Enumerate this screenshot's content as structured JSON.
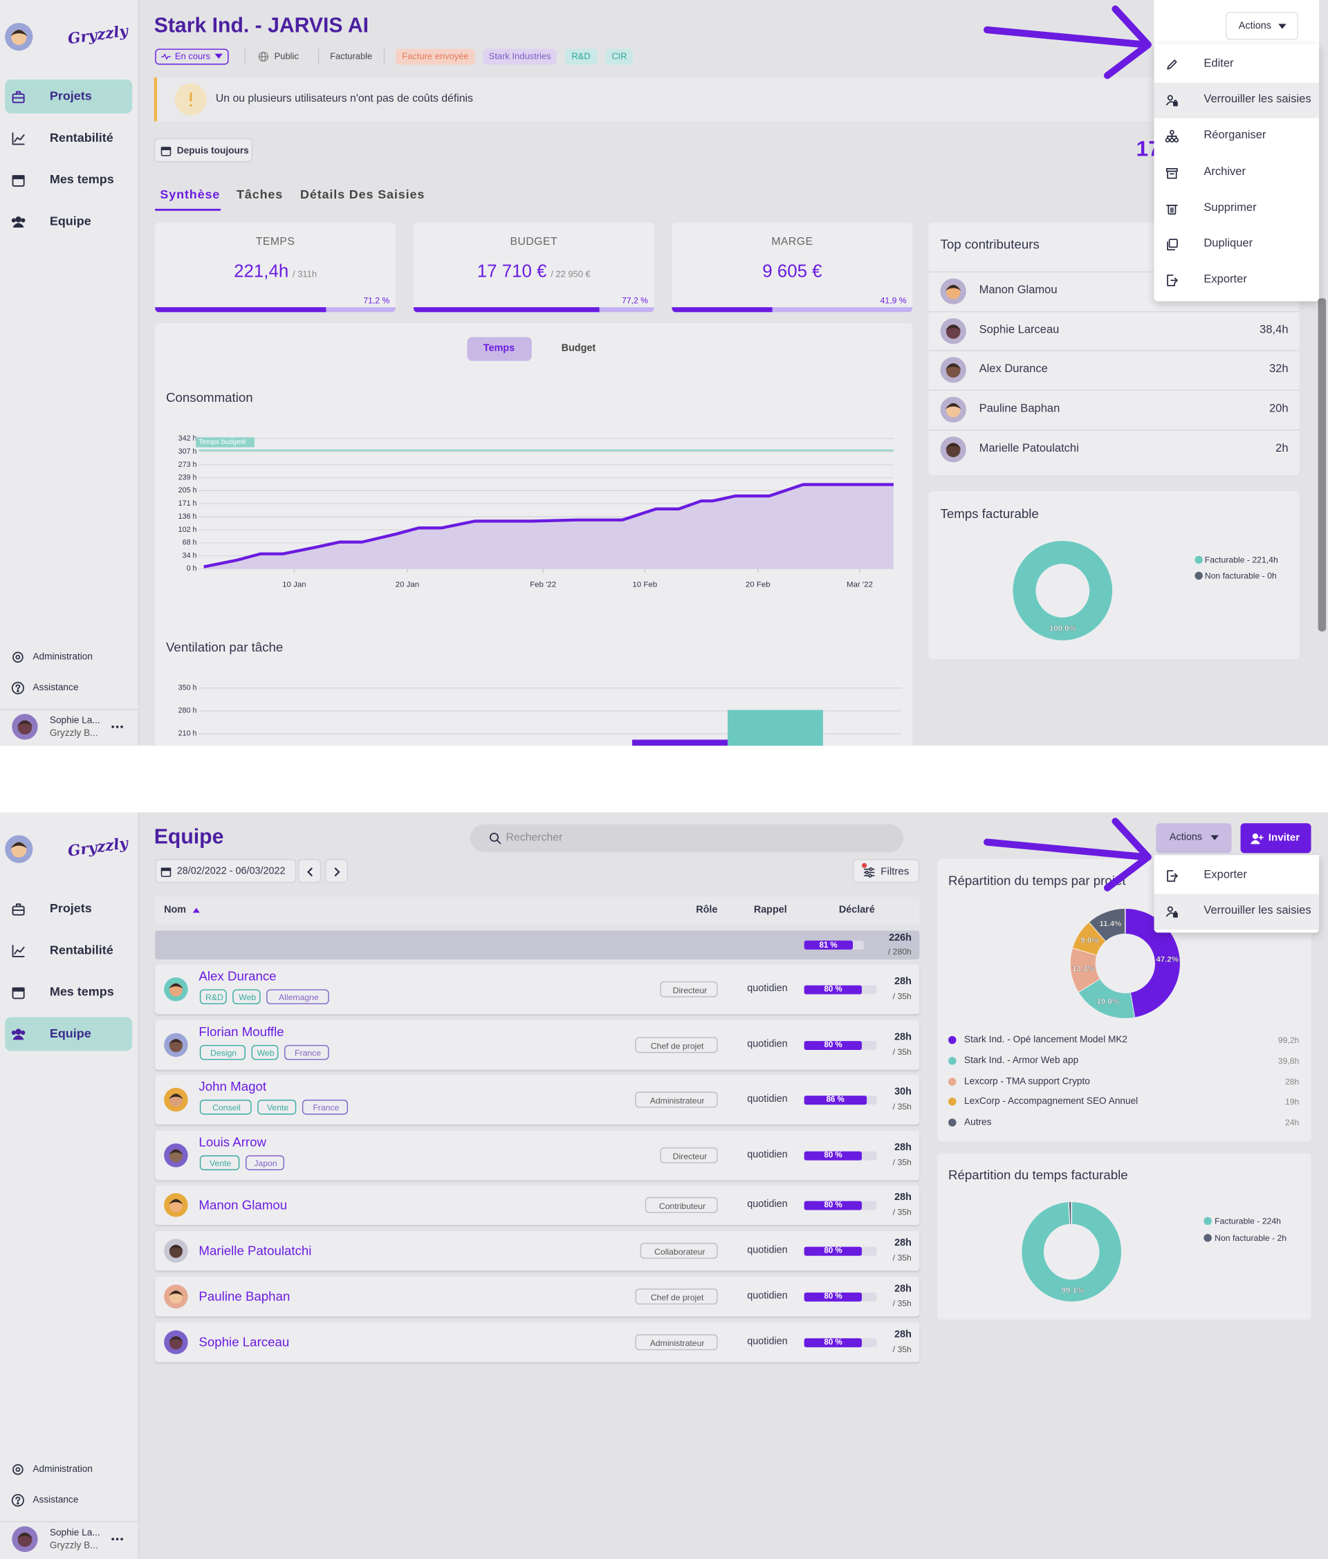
{
  "sidebar": {
    "logo": "Gryzzly",
    "nav": [
      "Projets",
      "Rentabilité",
      "Mes temps",
      "Equipe"
    ],
    "footer": [
      "Administration",
      "Assistance"
    ],
    "user_name": "Sophie La...",
    "user_org": "Gryzzly B..."
  },
  "project": {
    "active_nav": 0,
    "title": "Stark Ind. - JARVIS AI",
    "status": "En cours",
    "tags": [
      "Public",
      "Facturable",
      "Facture envoyée",
      "Stark Industries",
      "R&D",
      "CIR"
    ],
    "warning": "Un ou plusieurs utilisateurs n'ont pas de coûts définis",
    "period": "Depuis toujours",
    "kpi_partial": "17",
    "tabs": [
      "Synthèse",
      "Tâches",
      "Détails Des Saisies"
    ],
    "cards": [
      {
        "label": "TEMPS",
        "value": "221,4h",
        "total": "/ 311h",
        "progress": 71.2,
        "progress_label": "71,2 %"
      },
      {
        "label": "BUDGET",
        "value": "17 710 €",
        "total": "/ 22 950 €",
        "progress": 77.2,
        "progress_label": "77,2 %"
      },
      {
        "label": "MARGE",
        "value": "9 605 €",
        "progress": 41.9,
        "progress_label": "41,9 %"
      }
    ],
    "toggle": [
      "Temps",
      "Budget"
    ],
    "consumption": {
      "type": "line",
      "title": "Consommation",
      "color": "#6a1be0",
      "fill": "#d8cde9",
      "grid": true,
      "x": [
        1,
        4,
        6,
        8,
        11,
        13,
        15,
        18,
        20,
        22,
        25,
        30,
        34,
        38,
        41,
        43,
        45,
        46,
        48,
        51,
        54,
        62
      ],
      "values": [
        5,
        23,
        39,
        39,
        57,
        70,
        70,
        91,
        107,
        107,
        125,
        125,
        128,
        128,
        157,
        157,
        178,
        178,
        191,
        191,
        221,
        221
      ],
      "xlim": [
        1,
        62
      ],
      "xticks": [
        {
          "value": 9,
          "label": "10 Jan"
        },
        {
          "value": 19,
          "label": "20 Jan"
        },
        {
          "value": 31,
          "label": "Feb '22"
        },
        {
          "value": 40,
          "label": "10 Feb"
        },
        {
          "value": 50,
          "label": "20 Feb"
        },
        {
          "value": 59,
          "label": "Mar '22"
        }
      ],
      "ylim": [
        0,
        342
      ],
      "yticks": [
        {
          "value": 0,
          "label": "0 h"
        },
        {
          "value": 34,
          "label": "34 h"
        },
        {
          "value": 68,
          "label": "68 h"
        },
        {
          "value": 102,
          "label": "102 h"
        },
        {
          "value": 136,
          "label": "136 h"
        },
        {
          "value": 171,
          "label": "171 h"
        },
        {
          "value": 205,
          "label": "205 h"
        },
        {
          "value": 239,
          "label": "239 h"
        },
        {
          "value": 273,
          "label": "273 h"
        },
        {
          "value": 307,
          "label": "307 h"
        },
        {
          "value": 342,
          "label": "342 h"
        }
      ],
      "budget": {
        "value": 311,
        "label": "Temps budgeté",
        "color": "#8fd3c9"
      }
    },
    "ventilation": {
      "type": "bar",
      "title": "Ventilation par tâche",
      "grid": true,
      "categories": [
        null,
        null
      ],
      "values": [
        192,
        283
      ],
      "colors": [
        "#6a1be0",
        "#6cc9c0"
      ],
      "ylim": [
        0,
        350
      ],
      "yticks": [
        {
          "value": 350,
          "label": "350 h"
        },
        {
          "value": 280,
          "label": "280 h"
        },
        {
          "value": 210,
          "label": "210 h"
        }
      ]
    },
    "contributors": {
      "title": "Top contributeurs",
      "rows": [
        {
          "name": "Manon Glamou"
        },
        {
          "name": "Sophie Larceau",
          "hours": "38,4h"
        },
        {
          "name": "Alex Durance",
          "hours": "32h"
        },
        {
          "name": "Pauline Baphan",
          "hours": "20h"
        },
        {
          "name": "Marielle Patoulatchi",
          "hours": "2h"
        }
      ]
    },
    "billable": {
      "type": "pie",
      "title": "Temps facturable",
      "categories": [
        "Facturable - 221,4h",
        "Non facturable - 0h"
      ],
      "values": [
        100,
        0
      ],
      "value_labels": [
        "100.0%",
        null
      ],
      "colors": [
        "#6cc9c0",
        "#5a6376"
      ]
    },
    "actions": {
      "label": "Actions",
      "highlighted": 1,
      "items": [
        "Editer",
        "Verrouiller les saisies",
        "Réorganiser",
        "Archiver",
        "Supprimer",
        "Dupliquer",
        "Exporter"
      ]
    }
  },
  "team": {
    "active_nav": 3,
    "title": "Equipe",
    "search": "Rechercher",
    "period": "28/02/2022 - 06/03/2022",
    "filters": "Filtres",
    "invite": "Inviter",
    "actions": {
      "label": "Actions",
      "highlighted": 1,
      "items": [
        "Exporter",
        "Verrouiller les saisies"
      ]
    },
    "columns": [
      "Nom",
      "Rôle",
      "Rappel",
      "Déclaré"
    ],
    "total": {
      "pct": 81,
      "pct_label": "81 %",
      "hours": "226h",
      "capacity": "/ 280h"
    },
    "members": [
      {
        "name": "Alex Durance",
        "tags": [
          {
            "label": "R&D",
            "color": "#2fa89a"
          },
          {
            "label": "Web",
            "color": "#2fa89a"
          },
          {
            "label": "Allemagne",
            "color": "#7c5cc4"
          }
        ],
        "role": "Directeur",
        "reminder": "quotidien",
        "pct": 80,
        "pct_label": "80 %",
        "hours": "28h",
        "capacity": "/ 35h"
      },
      {
        "name": "Florian Mouffle",
        "tags": [
          {
            "label": "Design",
            "color": "#2fa89a"
          },
          {
            "label": "Web",
            "color": "#2fa89a"
          },
          {
            "label": "France",
            "color": "#7c5cc4"
          }
        ],
        "role": "Chef de projet",
        "reminder": "quotidien",
        "pct": 80,
        "pct_label": "80 %",
        "hours": "28h",
        "capacity": "/ 35h"
      },
      {
        "name": "John Magot",
        "tags": [
          {
            "label": "Conseil",
            "color": "#2fa89a"
          },
          {
            "label": "Vente",
            "color": "#2fa89a"
          },
          {
            "label": "France",
            "color": "#7c5cc4"
          }
        ],
        "role": "Administrateur",
        "reminder": "quotidien",
        "pct": 86,
        "pct_label": "86 %",
        "hours": "30h",
        "capacity": "/ 35h"
      },
      {
        "name": "Louis Arrow",
        "tags": [
          {
            "label": "Vente",
            "color": "#2fa89a"
          },
          {
            "label": "Japon",
            "color": "#7c5cc4"
          }
        ],
        "role": "Directeur",
        "reminder": "quotidien",
        "pct": 80,
        "pct_label": "80 %",
        "hours": "28h",
        "capacity": "/ 35h"
      },
      {
        "name": "Manon Glamou",
        "tags": [],
        "role": "Contributeur",
        "reminder": "quotidien",
        "pct": 80,
        "pct_label": "80 %",
        "hours": "28h",
        "capacity": "/ 35h"
      },
      {
        "name": "Marielle Patoulatchi",
        "tags": [],
        "role": "Collaborateur",
        "reminder": "quotidien",
        "pct": 80,
        "pct_label": "80 %",
        "hours": "28h",
        "capacity": "/ 35h"
      },
      {
        "name": "Pauline Baphan",
        "tags": [],
        "role": "Chef de projet",
        "reminder": "quotidien",
        "pct": 80,
        "pct_label": "80 %",
        "hours": "28h",
        "capacity": "/ 35h"
      },
      {
        "name": "Sophie Larceau",
        "tags": [],
        "role": "Administrateur",
        "reminder": "quotidien",
        "pct": 80,
        "pct_label": "80 %",
        "hours": "28h",
        "capacity": "/ 35h"
      }
    ],
    "projects_chart": {
      "type": "pie",
      "title": "Répartition du temps par projet",
      "categories": [
        "Stark Ind. - Opé lancement Model MK2",
        "Stark Ind. - Armor Web app",
        "Lexcorp - TMA support Crypto",
        "LexCorp - Accompagnement SEO Annuel",
        "Autres"
      ],
      "values": [
        47.2,
        19.0,
        13.3,
        9.0,
        11.4
      ],
      "value_labels": [
        "47.2%",
        "19.0%",
        "13.3%",
        "9.0%",
        "11.4%"
      ],
      "hours": [
        "99,2h",
        "39,8h",
        "28h",
        "19h",
        "24h"
      ],
      "colors": [
        "#6a1be0",
        "#6cc9c0",
        "#e8a990",
        "#e8a93c",
        "#5a6376"
      ]
    },
    "billable_chart": {
      "type": "pie",
      "title": "Répartition du temps facturable",
      "categories": [
        "Facturable - 224h",
        "Non facturable - 2h"
      ],
      "values": [
        99.1,
        0.9
      ],
      "value_labels": [
        "99.1%",
        null
      ],
      "colors": [
        "#6cc9c0",
        "#5a6376"
      ]
    }
  }
}
